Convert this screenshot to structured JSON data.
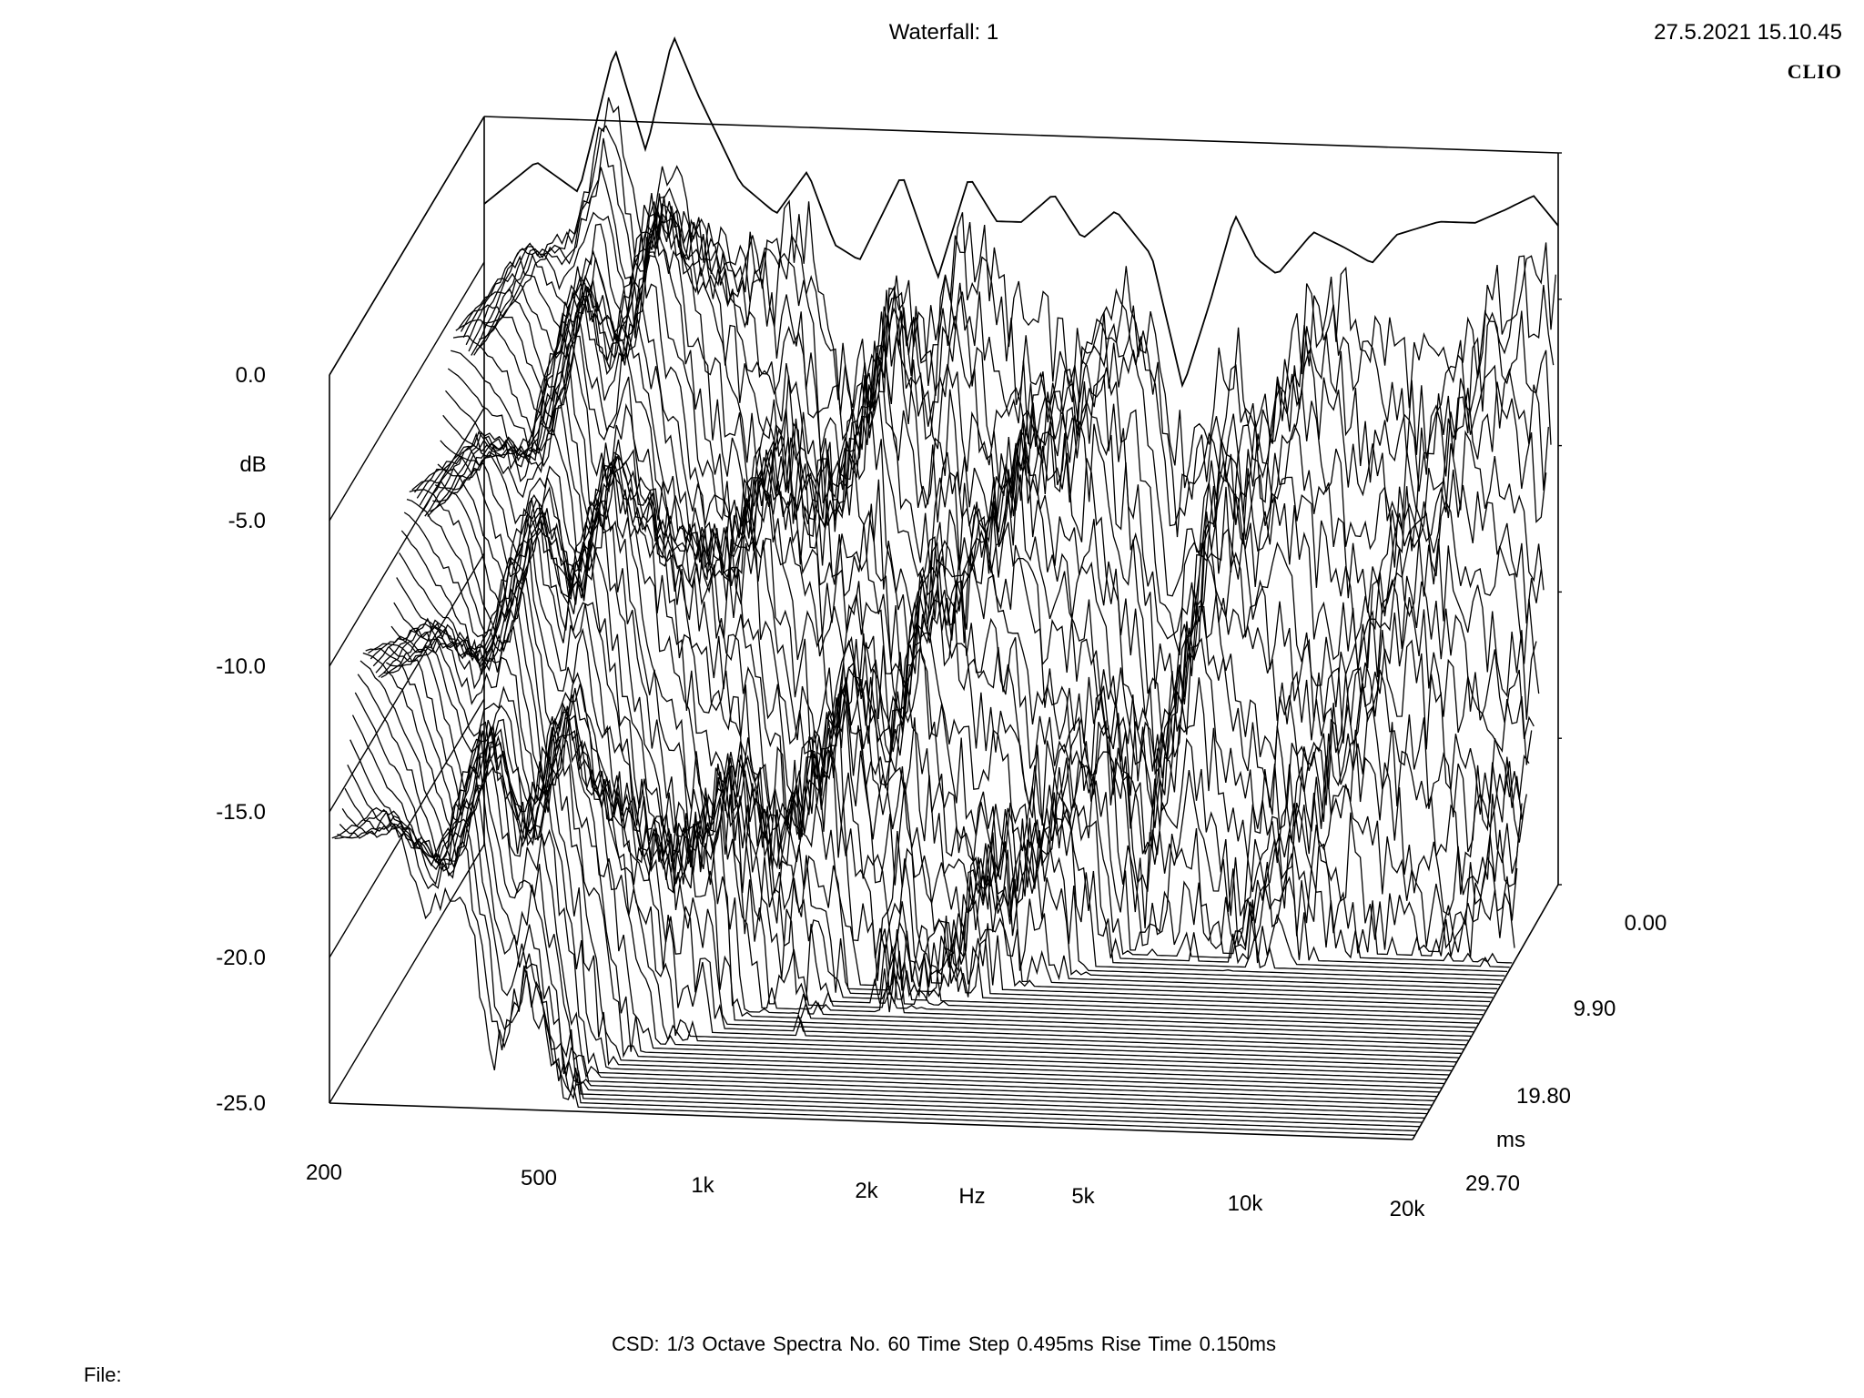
{
  "header": {
    "title": "Waterfall: 1",
    "datetime": "27.5.2021 15.10.45",
    "brand": "CLIO"
  },
  "footer": {
    "info": "CSD:   1/3 Octave   Spectra No. 60   Time Step 0.495ms   Rise Time 0.150ms",
    "file_label": "File:"
  },
  "chart_data": {
    "type": "waterfall",
    "title": "Waterfall: 1",
    "x_axis": {
      "label": "Hz",
      "scale": "log",
      "range": [
        200,
        20000
      ],
      "ticks": [
        200,
        500,
        1000,
        2000,
        5000,
        10000,
        20000
      ],
      "tick_labels": [
        "200",
        "500",
        "1k",
        "2k",
        "5k",
        "10k",
        "20k"
      ]
    },
    "y_axis": {
      "label": "dB",
      "range": [
        -25,
        0
      ],
      "ticks": [
        0,
        -5,
        -10,
        -15,
        -20,
        -25
      ],
      "tick_labels": [
        "0.0",
        "-5.0",
        "-10.0",
        "-15.0",
        "-20.0",
        "-25.0"
      ]
    },
    "z_axis": {
      "label": "ms",
      "range": [
        0,
        29.7
      ],
      "ticks": [
        0,
        9.9,
        19.8,
        29.7
      ],
      "tick_labels": [
        "0.00",
        "9.90",
        "19.80",
        "29.70"
      ]
    },
    "spectra_count": 60,
    "time_step_ms": 0.495,
    "first_spectrum": {
      "freq_hz": [
        200,
        250,
        300,
        350,
        400,
        450,
        500,
        600,
        700,
        800,
        900,
        1000,
        1200,
        1400,
        1600,
        1800,
        2000,
        2300,
        2600,
        3000,
        3500,
        4000,
        4500,
        5000,
        5500,
        6000,
        7000,
        8000,
        9000,
        10000,
        12000,
        14000,
        16000,
        18000,
        20000
      ],
      "level_db": [
        -3.0,
        -1.5,
        -2.5,
        2.5,
        -1.0,
        3.0,
        1.0,
        -2.0,
        -3.0,
        -1.5,
        -4.0,
        -4.5,
        -1.5,
        -5.0,
        -1.5,
        -3.0,
        -3.0,
        -2.0,
        -3.5,
        -2.5,
        -4.0,
        -8.5,
        -5.5,
        -2.5,
        -4.0,
        -4.5,
        -3.0,
        -3.5,
        -4.0,
        -3.0,
        -2.5,
        -2.5,
        -2.0,
        -1.5,
        -2.5
      ]
    }
  }
}
